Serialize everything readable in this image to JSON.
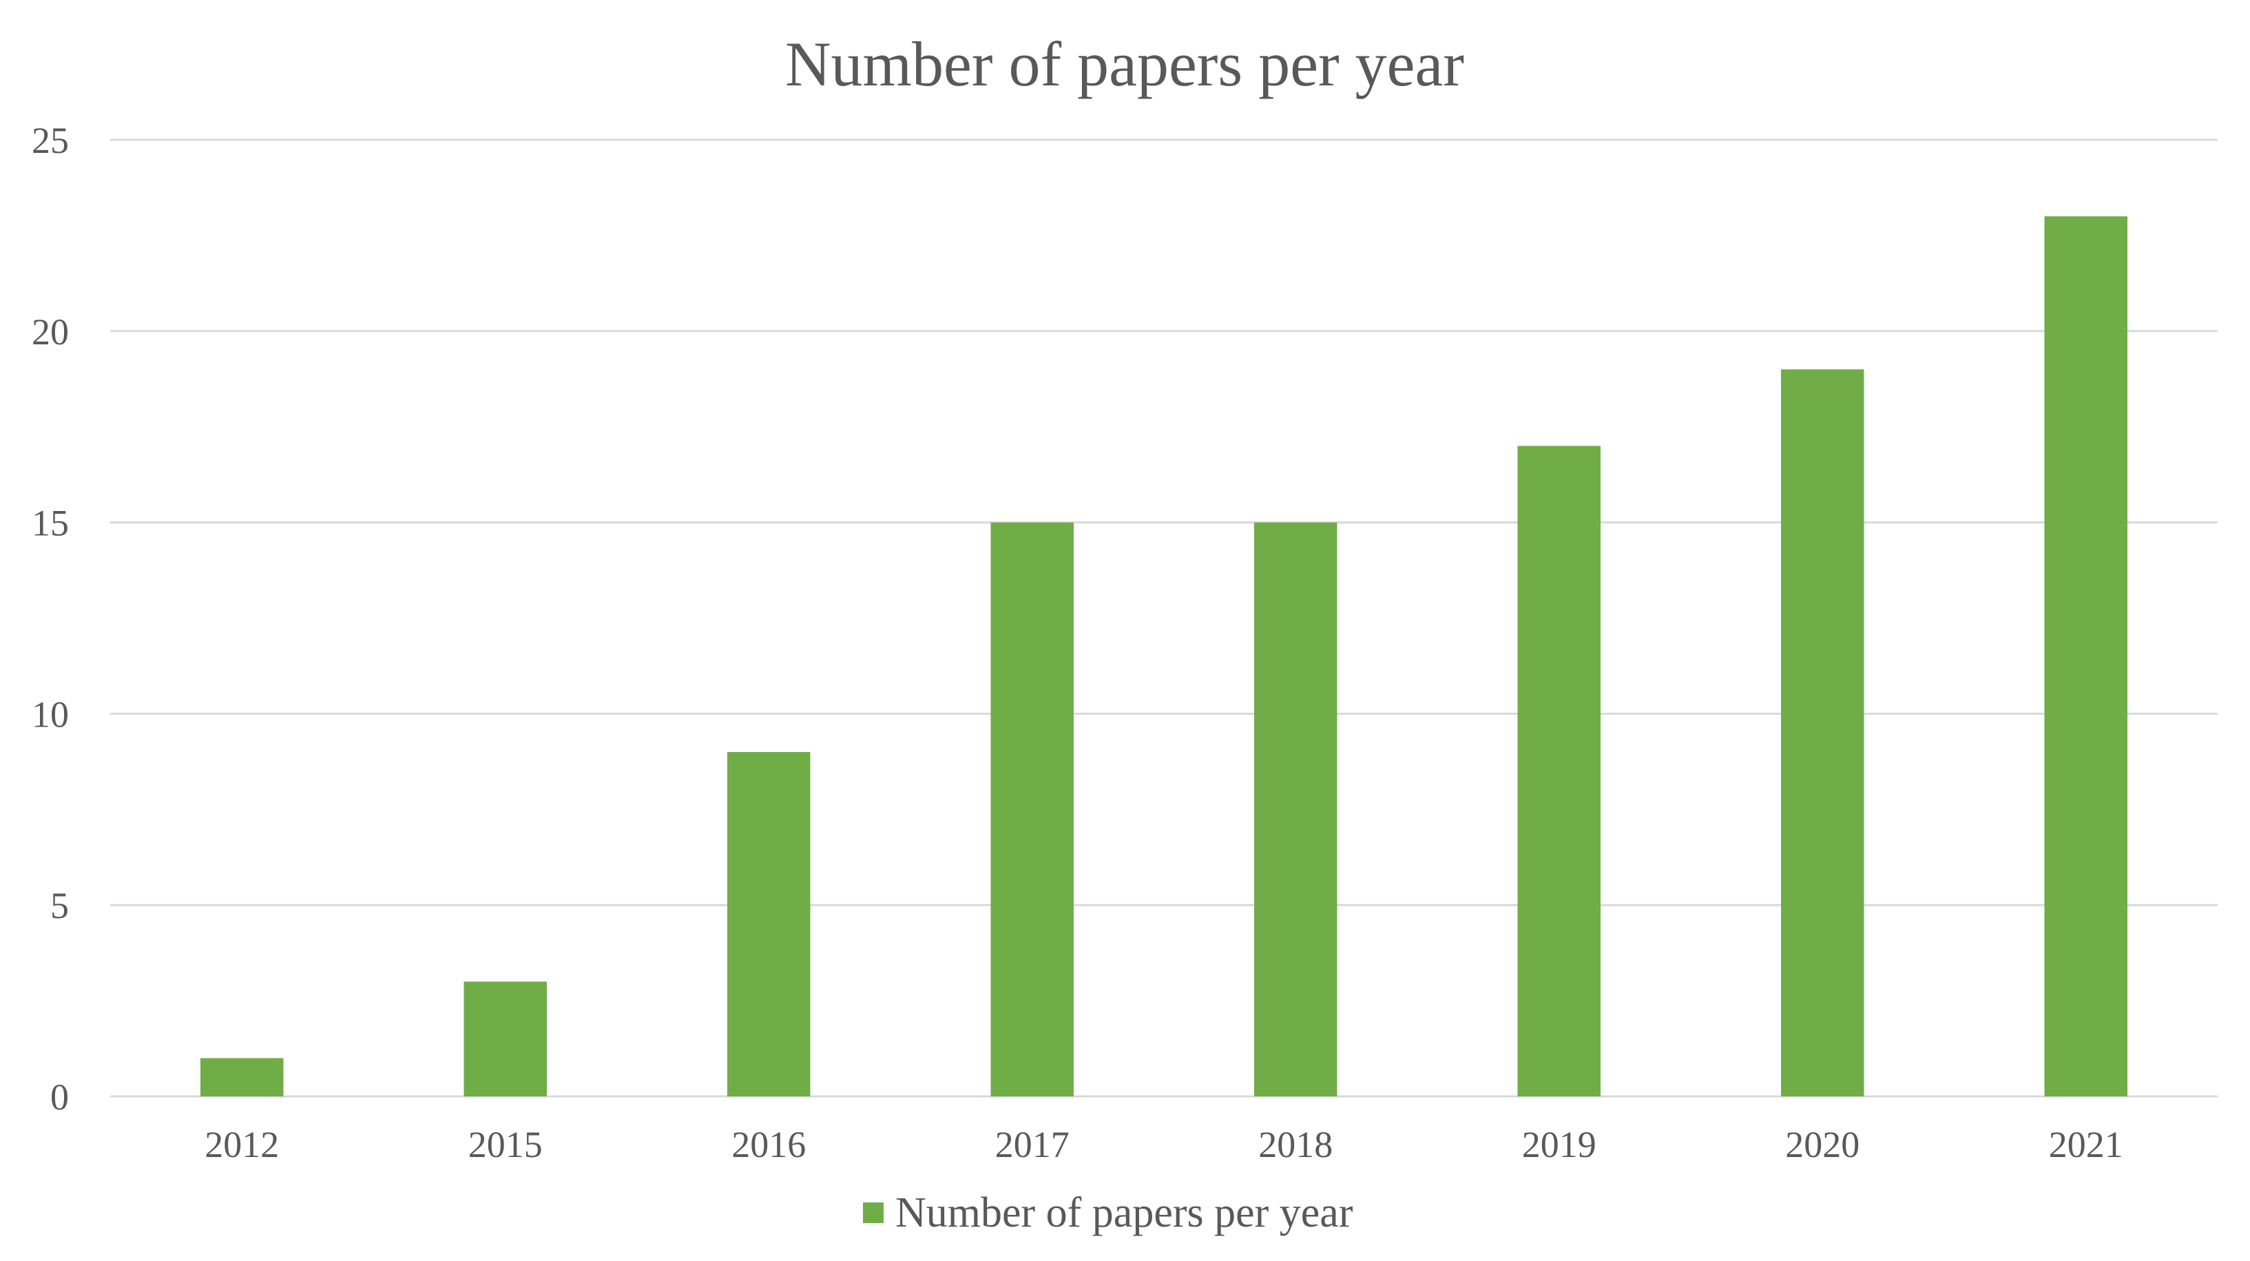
{
  "chart_data": {
    "type": "bar",
    "title": "Number of papers per year",
    "categories": [
      "2012",
      "2015",
      "2016",
      "2017",
      "2018",
      "2019",
      "2020",
      "2021"
    ],
    "series": [
      {
        "name": "Number of papers per year",
        "values": [
          1,
          3,
          9,
          15,
          15,
          17,
          19,
          23
        ],
        "color": "#70ad47"
      }
    ],
    "xlabel": "",
    "ylabel": "",
    "ylim": [
      0,
      25
    ],
    "yticks": [
      "0",
      "5",
      "10",
      "15",
      "20",
      "25"
    ],
    "grid": true,
    "legend_position": "bottom"
  }
}
